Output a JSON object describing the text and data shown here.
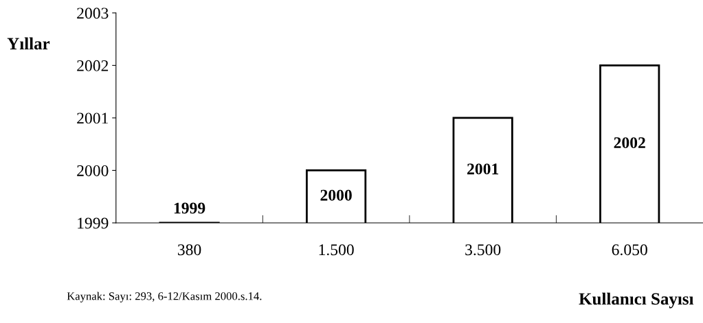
{
  "chart_data": {
    "type": "bar",
    "ylabel": "Yıllar",
    "xlabel": "Kullanıcı Sayısı",
    "categories": [
      "380",
      "1.500",
      "3.500",
      "6.050"
    ],
    "values": [
      1999,
      2000,
      2001,
      2002
    ],
    "color": "#ffffff",
    "ylim": [
      1999,
      2003
    ],
    "yticks": [
      1999,
      2000,
      2001,
      2002,
      2003
    ],
    "data_labels": true,
    "grid": false,
    "annotations": [
      "Kaynak: Sayı: 293, 6-12/Kasım 2000.s.14."
    ]
  }
}
